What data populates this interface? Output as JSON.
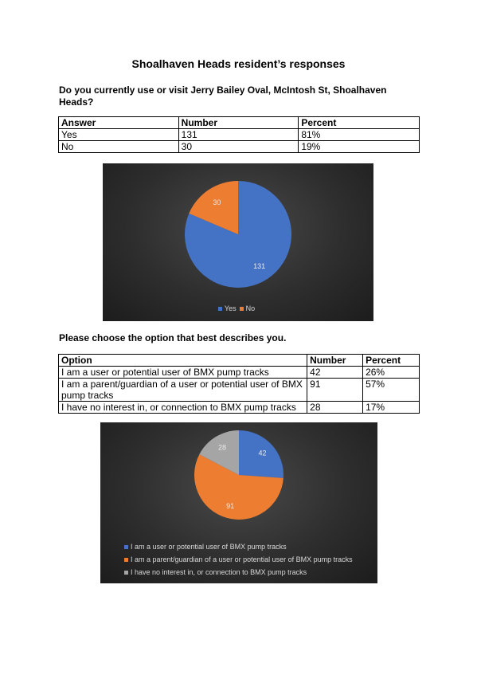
{
  "title": "Shoalhaven Heads resident’s responses",
  "q1": {
    "question": "Do you currently use or visit Jerry Bailey Oval, McIntosh St, Shoalhaven Heads?",
    "headers": [
      "Answer",
      "Number",
      "Percent"
    ],
    "rows": [
      [
        "Yes",
        "131",
        "81%"
      ],
      [
        "No",
        "30",
        "19%"
      ]
    ]
  },
  "q2": {
    "question": "Please choose the option that best describes you.",
    "headers": [
      "Option",
      "Number",
      "Percent"
    ],
    "rows": [
      [
        "I am a user or potential user of BMX pump tracks",
        "42",
        "26%"
      ],
      [
        "I am a parent/guardian of a user or potential user of BMX pump tracks",
        "91",
        "57%"
      ],
      [
        "I have no interest in, or connection to BMX pump tracks",
        "28",
        "17%"
      ]
    ]
  },
  "chart_data": [
    {
      "type": "pie",
      "categories": [
        "Yes",
        "No"
      ],
      "values": [
        131,
        30
      ],
      "data_labels": [
        "131",
        "30"
      ],
      "colors": [
        "#4472c4",
        "#ed7d31"
      ],
      "legend": "bottom"
    },
    {
      "type": "pie",
      "categories": [
        "I am a user or potential user of BMX pump tracks",
        "I am a parent/guardian of a user or potential user of BMX pump tracks",
        "I have no interest in, or connection to BMX pump tracks"
      ],
      "values": [
        42,
        91,
        28
      ],
      "data_labels": [
        "42",
        "91",
        "28"
      ],
      "colors": [
        "#4472c4",
        "#ed7d31",
        "#a5a5a5"
      ],
      "legend": "bottom"
    }
  ]
}
